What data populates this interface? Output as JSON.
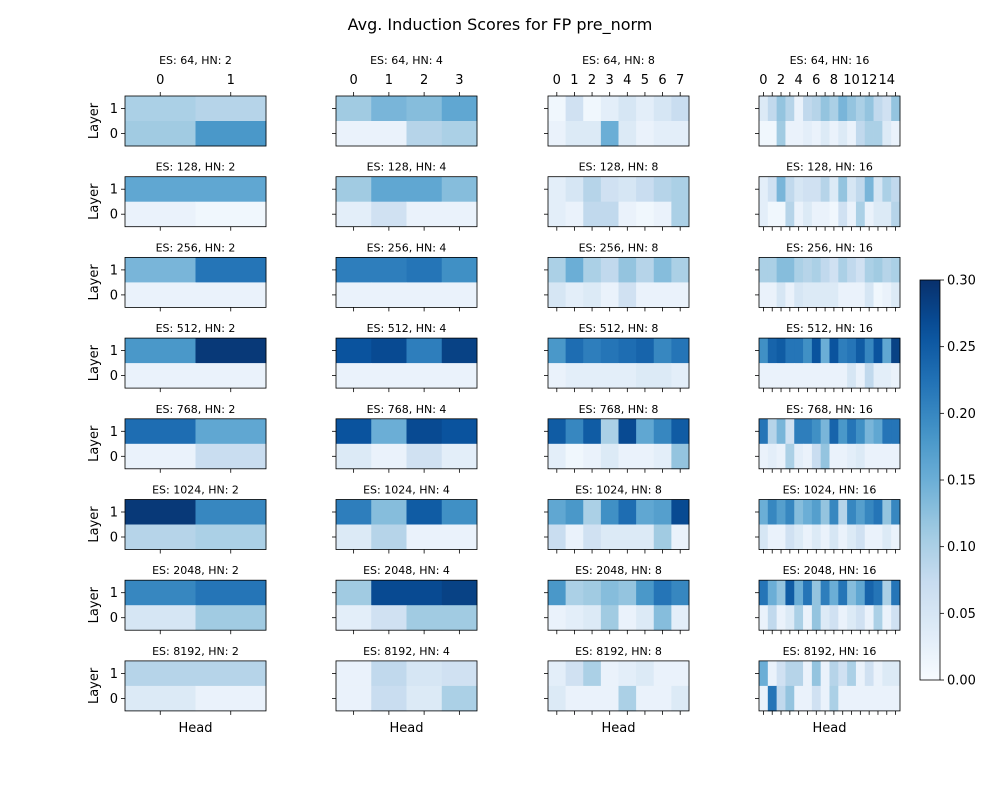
{
  "chart_data": {
    "type": "heatmap",
    "title": "Avg. Induction Scores for FP pre_norm",
    "xlabel": "Head",
    "ylabel": "Layer",
    "colormap": "Blues",
    "colorbar": {
      "min": 0.0,
      "max": 0.3,
      "ticks": [
        "0.00",
        "0.05",
        "0.10",
        "0.15",
        "0.20",
        "0.25",
        "0.30"
      ]
    },
    "layer_ticks": [
      "1",
      "0"
    ],
    "head_tick_labels": {
      "2": [
        "0",
        "1"
      ],
      "4": [
        "0",
        "1",
        "2",
        "3"
      ],
      "8": [
        "0",
        "1",
        "2",
        "3",
        "4",
        "5",
        "6",
        "7"
      ],
      "16": [
        "0",
        "2",
        "4",
        "6",
        "8",
        "10",
        "12",
        "14"
      ]
    },
    "panels": [
      {
        "title": "ES: 64, HN: 2",
        "es": 64,
        "hn": 2,
        "layer1": [
          0.1,
          0.09
        ],
        "layer0": [
          0.11,
          0.18
        ]
      },
      {
        "title": "ES: 64, HN: 4",
        "es": 64,
        "hn": 4,
        "layer1": [
          0.11,
          0.14,
          0.13,
          0.16
        ],
        "layer0": [
          0.02,
          0.02,
          0.09,
          0.1
        ]
      },
      {
        "title": "ES: 64, HN: 8",
        "es": 64,
        "hn": 8,
        "layer1": [
          0.01,
          0.06,
          0.01,
          0.03,
          0.05,
          0.03,
          0.05,
          0.07
        ],
        "layer0": [
          0.02,
          0.04,
          0.04,
          0.15,
          0.04,
          0.02,
          0.03,
          0.03
        ]
      },
      {
        "title": "ES: 64, HN: 16",
        "es": 64,
        "hn": 16,
        "layer1": [
          0.04,
          0.08,
          0.12,
          0.09,
          0.02,
          0.08,
          0.09,
          0.12,
          0.1,
          0.14,
          0.12,
          0.1,
          0.12,
          0.08,
          0.06,
          0.12
        ],
        "layer0": [
          0.01,
          0.01,
          0.11,
          0.02,
          0.02,
          0.03,
          0.02,
          0.04,
          0.02,
          0.04,
          0.02,
          0.08,
          0.1,
          0.1,
          0.04,
          0.02
        ]
      },
      {
        "title": "ES: 128, HN: 2",
        "es": 128,
        "hn": 2,
        "layer1": [
          0.16,
          0.16
        ],
        "layer0": [
          0.02,
          0.01
        ]
      },
      {
        "title": "ES: 128, HN: 4",
        "es": 128,
        "hn": 4,
        "layer1": [
          0.11,
          0.16,
          0.16,
          0.13
        ],
        "layer0": [
          0.03,
          0.06,
          0.02,
          0.02
        ]
      },
      {
        "title": "ES: 128, HN: 8",
        "es": 128,
        "hn": 8,
        "layer1": [
          0.03,
          0.05,
          0.09,
          0.06,
          0.05,
          0.07,
          0.09,
          0.1
        ],
        "layer0": [
          0.03,
          0.02,
          0.08,
          0.08,
          0.02,
          0.01,
          0.02,
          0.1
        ]
      },
      {
        "title": "ES: 128, HN: 16",
        "es": 128,
        "hn": 16,
        "layer1": [
          0.03,
          0.06,
          0.14,
          0.08,
          0.05,
          0.06,
          0.06,
          0.09,
          0.04,
          0.12,
          0.05,
          0.08,
          0.14,
          0.05,
          0.1,
          0.08
        ],
        "layer0": [
          0.03,
          0.01,
          0.01,
          0.09,
          0.02,
          0.04,
          0.02,
          0.02,
          0.01,
          0.06,
          0.02,
          0.1,
          0.02,
          0.04,
          0.04,
          0.09
        ]
      },
      {
        "title": "ES: 256, HN: 2",
        "es": 256,
        "hn": 2,
        "layer1": [
          0.14,
          0.22
        ],
        "layer0": [
          0.02,
          0.02
        ]
      },
      {
        "title": "ES: 256, HN: 4",
        "es": 256,
        "hn": 4,
        "layer1": [
          0.21,
          0.21,
          0.22,
          0.19
        ],
        "layer0": [
          0.02,
          0.02,
          0.02,
          0.02
        ]
      },
      {
        "title": "ES: 256, HN: 8",
        "es": 256,
        "hn": 8,
        "layer1": [
          0.1,
          0.15,
          0.1,
          0.08,
          0.12,
          0.09,
          0.13,
          0.1
        ],
        "layer0": [
          0.05,
          0.03,
          0.04,
          0.02,
          0.06,
          0.02,
          0.02,
          0.02
        ]
      },
      {
        "title": "ES: 256, HN: 16",
        "es": 256,
        "hn": 16,
        "layer1": [
          0.1,
          0.1,
          0.13,
          0.13,
          0.1,
          0.09,
          0.1,
          0.08,
          0.06,
          0.1,
          0.08,
          0.06,
          0.1,
          0.11,
          0.09,
          0.1
        ],
        "layer0": [
          0.02,
          0.02,
          0.05,
          0.02,
          0.05,
          0.04,
          0.04,
          0.04,
          0.04,
          0.02,
          0.02,
          0.02,
          0.05,
          0.01,
          0.02,
          0.04
        ]
      },
      {
        "title": "ES: 512, HN: 2",
        "es": 512,
        "hn": 2,
        "layer1": [
          0.18,
          0.29
        ],
        "layer0": [
          0.02,
          0.02
        ]
      },
      {
        "title": "ES: 512, HN: 4",
        "es": 512,
        "hn": 4,
        "layer1": [
          0.26,
          0.27,
          0.21,
          0.28
        ],
        "layer0": [
          0.02,
          0.02,
          0.02,
          0.02
        ]
      },
      {
        "title": "ES: 512, HN: 8",
        "es": 512,
        "hn": 8,
        "layer1": [
          0.18,
          0.23,
          0.21,
          0.22,
          0.23,
          0.24,
          0.2,
          0.22
        ],
        "layer0": [
          0.02,
          0.03,
          0.03,
          0.03,
          0.03,
          0.04,
          0.04,
          0.03
        ]
      },
      {
        "title": "ES: 512, HN: 16",
        "es": 512,
        "hn": 16,
        "layer1": [
          0.19,
          0.24,
          0.25,
          0.22,
          0.22,
          0.19,
          0.26,
          0.15,
          0.26,
          0.21,
          0.22,
          0.25,
          0.2,
          0.26,
          0.16,
          0.28
        ],
        "layer0": [
          0.02,
          0.02,
          0.02,
          0.02,
          0.02,
          0.02,
          0.02,
          0.02,
          0.02,
          0.02,
          0.05,
          0.02,
          0.08,
          0.03,
          0.03,
          0.02
        ]
      },
      {
        "title": "ES: 768, HN: 2",
        "es": 768,
        "hn": 2,
        "layer1": [
          0.23,
          0.16
        ],
        "layer0": [
          0.02,
          0.07
        ]
      },
      {
        "title": "ES: 768, HN: 4",
        "es": 768,
        "hn": 4,
        "layer1": [
          0.26,
          0.15,
          0.27,
          0.26
        ],
        "layer0": [
          0.04,
          0.02,
          0.06,
          0.03
        ]
      },
      {
        "title": "ES: 768, HN: 8",
        "es": 768,
        "hn": 8,
        "layer1": [
          0.25,
          0.2,
          0.25,
          0.1,
          0.27,
          0.16,
          0.2,
          0.25
        ],
        "layer0": [
          0.03,
          0.01,
          0.02,
          0.04,
          0.02,
          0.02,
          0.03,
          0.12
        ]
      },
      {
        "title": "ES: 768, HN: 16",
        "es": 768,
        "hn": 16,
        "layer1": [
          0.22,
          0.09,
          0.14,
          0.06,
          0.21,
          0.21,
          0.19,
          0.14,
          0.24,
          0.18,
          0.22,
          0.19,
          0.14,
          0.16,
          0.22,
          0.22
        ],
        "layer0": [
          0.02,
          0.03,
          0.02,
          0.1,
          0.03,
          0.02,
          0.07,
          0.12,
          0.02,
          0.02,
          0.03,
          0.04,
          0.02,
          0.02,
          0.02,
          0.02
        ]
      },
      {
        "title": "ES: 1024, HN: 2",
        "es": 1024,
        "hn": 2,
        "layer1": [
          0.29,
          0.2
        ],
        "layer0": [
          0.09,
          0.1
        ]
      },
      {
        "title": "ES: 1024, HN: 4",
        "es": 1024,
        "hn": 4,
        "layer1": [
          0.21,
          0.13,
          0.25,
          0.19
        ],
        "layer0": [
          0.04,
          0.09,
          0.02,
          0.02
        ]
      },
      {
        "title": "ES: 1024, HN: 8",
        "es": 1024,
        "hn": 8,
        "layer1": [
          0.16,
          0.18,
          0.1,
          0.19,
          0.23,
          0.16,
          0.17,
          0.27
        ],
        "layer0": [
          0.07,
          0.02,
          0.06,
          0.04,
          0.04,
          0.04,
          0.11,
          0.02
        ]
      },
      {
        "title": "ES: 1024, HN: 16",
        "es": 1024,
        "hn": 16,
        "layer1": [
          0.15,
          0.2,
          0.17,
          0.2,
          0.13,
          0.15,
          0.17,
          0.12,
          0.2,
          0.09,
          0.2,
          0.17,
          0.2,
          0.22,
          0.12,
          0.2
        ],
        "layer0": [
          0.05,
          0.02,
          0.02,
          0.06,
          0.04,
          0.02,
          0.04,
          0.02,
          0.05,
          0.02,
          0.04,
          0.06,
          0.02,
          0.02,
          0.04,
          0.02
        ]
      },
      {
        "title": "ES: 2048, HN: 2",
        "es": 2048,
        "hn": 2,
        "layer1": [
          0.2,
          0.22
        ],
        "layer0": [
          0.05,
          0.11
        ]
      },
      {
        "title": "ES: 2048, HN: 4",
        "es": 2048,
        "hn": 4,
        "layer1": [
          0.11,
          0.27,
          0.27,
          0.28
        ],
        "layer0": [
          0.03,
          0.06,
          0.11,
          0.11
        ]
      },
      {
        "title": "ES: 2048, HN: 8",
        "es": 2048,
        "hn": 8,
        "layer1": [
          0.18,
          0.1,
          0.11,
          0.13,
          0.12,
          0.18,
          0.22,
          0.2
        ],
        "layer0": [
          0.02,
          0.03,
          0.04,
          0.11,
          0.02,
          0.04,
          0.13,
          0.03
        ]
      },
      {
        "title": "ES: 2048, HN: 16",
        "es": 2048,
        "hn": 16,
        "layer1": [
          0.22,
          0.15,
          0.12,
          0.25,
          0.15,
          0.22,
          0.12,
          0.21,
          0.15,
          0.22,
          0.13,
          0.16,
          0.24,
          0.22,
          0.1,
          0.22
        ],
        "layer0": [
          0.02,
          0.08,
          0.02,
          0.04,
          0.1,
          0.02,
          0.12,
          0.04,
          0.06,
          0.02,
          0.04,
          0.06,
          0.02,
          0.1,
          0.02,
          0.06
        ]
      },
      {
        "title": "ES: 8192, HN: 2",
        "es": 8192,
        "hn": 2,
        "layer1": [
          0.09,
          0.09
        ],
        "layer0": [
          0.04,
          0.02
        ]
      },
      {
        "title": "ES: 8192, HN: 4",
        "es": 8192,
        "hn": 4,
        "layer1": [
          0.02,
          0.08,
          0.05,
          0.06
        ],
        "layer0": [
          0.02,
          0.07,
          0.04,
          0.1
        ]
      },
      {
        "title": "ES: 8192, HN: 8",
        "es": 8192,
        "hn": 8,
        "layer1": [
          0.03,
          0.06,
          0.1,
          0.02,
          0.03,
          0.04,
          0.02,
          0.02
        ],
        "layer0": [
          0.04,
          0.02,
          0.02,
          0.02,
          0.1,
          0.02,
          0.02,
          0.04
        ]
      },
      {
        "title": "ES: 8192, HN: 16",
        "es": 8192,
        "hn": 16,
        "layer1": [
          0.15,
          0.02,
          0.06,
          0.09,
          0.09,
          0.02,
          0.12,
          0.02,
          0.09,
          0.06,
          0.1,
          0.02,
          0.06,
          0.02,
          0.04,
          0.04
        ],
        "layer0": [
          0.02,
          0.22,
          0.08,
          0.12,
          0.02,
          0.02,
          0.06,
          0.02,
          0.1,
          0.02,
          0.02,
          0.02,
          0.02,
          0.02,
          0.02,
          0.02
        ]
      }
    ]
  }
}
